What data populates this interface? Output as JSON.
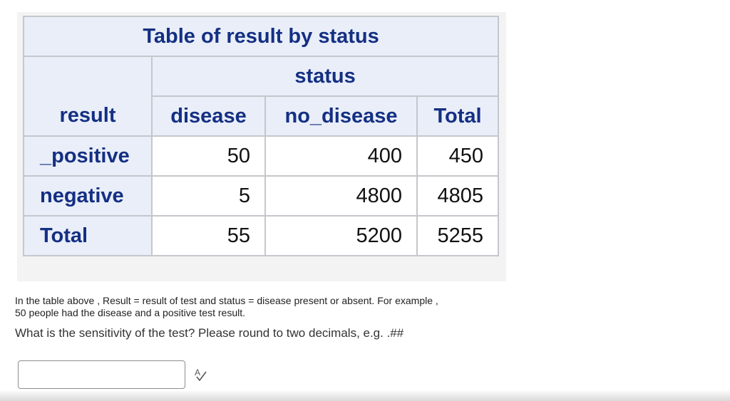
{
  "table": {
    "title": "Table of result by status",
    "column_group_header": "status",
    "row_header_label": "result",
    "column_headers": [
      "disease",
      "no_disease",
      "Total"
    ],
    "rows": [
      {
        "label": "_positive",
        "values": [
          "50",
          "400",
          "450"
        ]
      },
      {
        "label": "negative",
        "values": [
          "5",
          "4800",
          "4805"
        ]
      },
      {
        "label": "Total",
        "values": [
          "55",
          "5200",
          "5255"
        ]
      }
    ]
  },
  "description": {
    "line1": "In the table above , Result = result of test and status = disease present or absent. For example ,",
    "line2": "50 people had the disease and a positive test result."
  },
  "question": "What is the sensitivity of the test? Please round to two decimals, e.g. .##",
  "answer": {
    "value": "",
    "placeholder": ""
  },
  "icons": {
    "spellcheck": "spellcheck-icon"
  },
  "colors": {
    "header_bg": "#e9eef8",
    "header_text": "#142f83",
    "border": "#c4c7cb"
  }
}
